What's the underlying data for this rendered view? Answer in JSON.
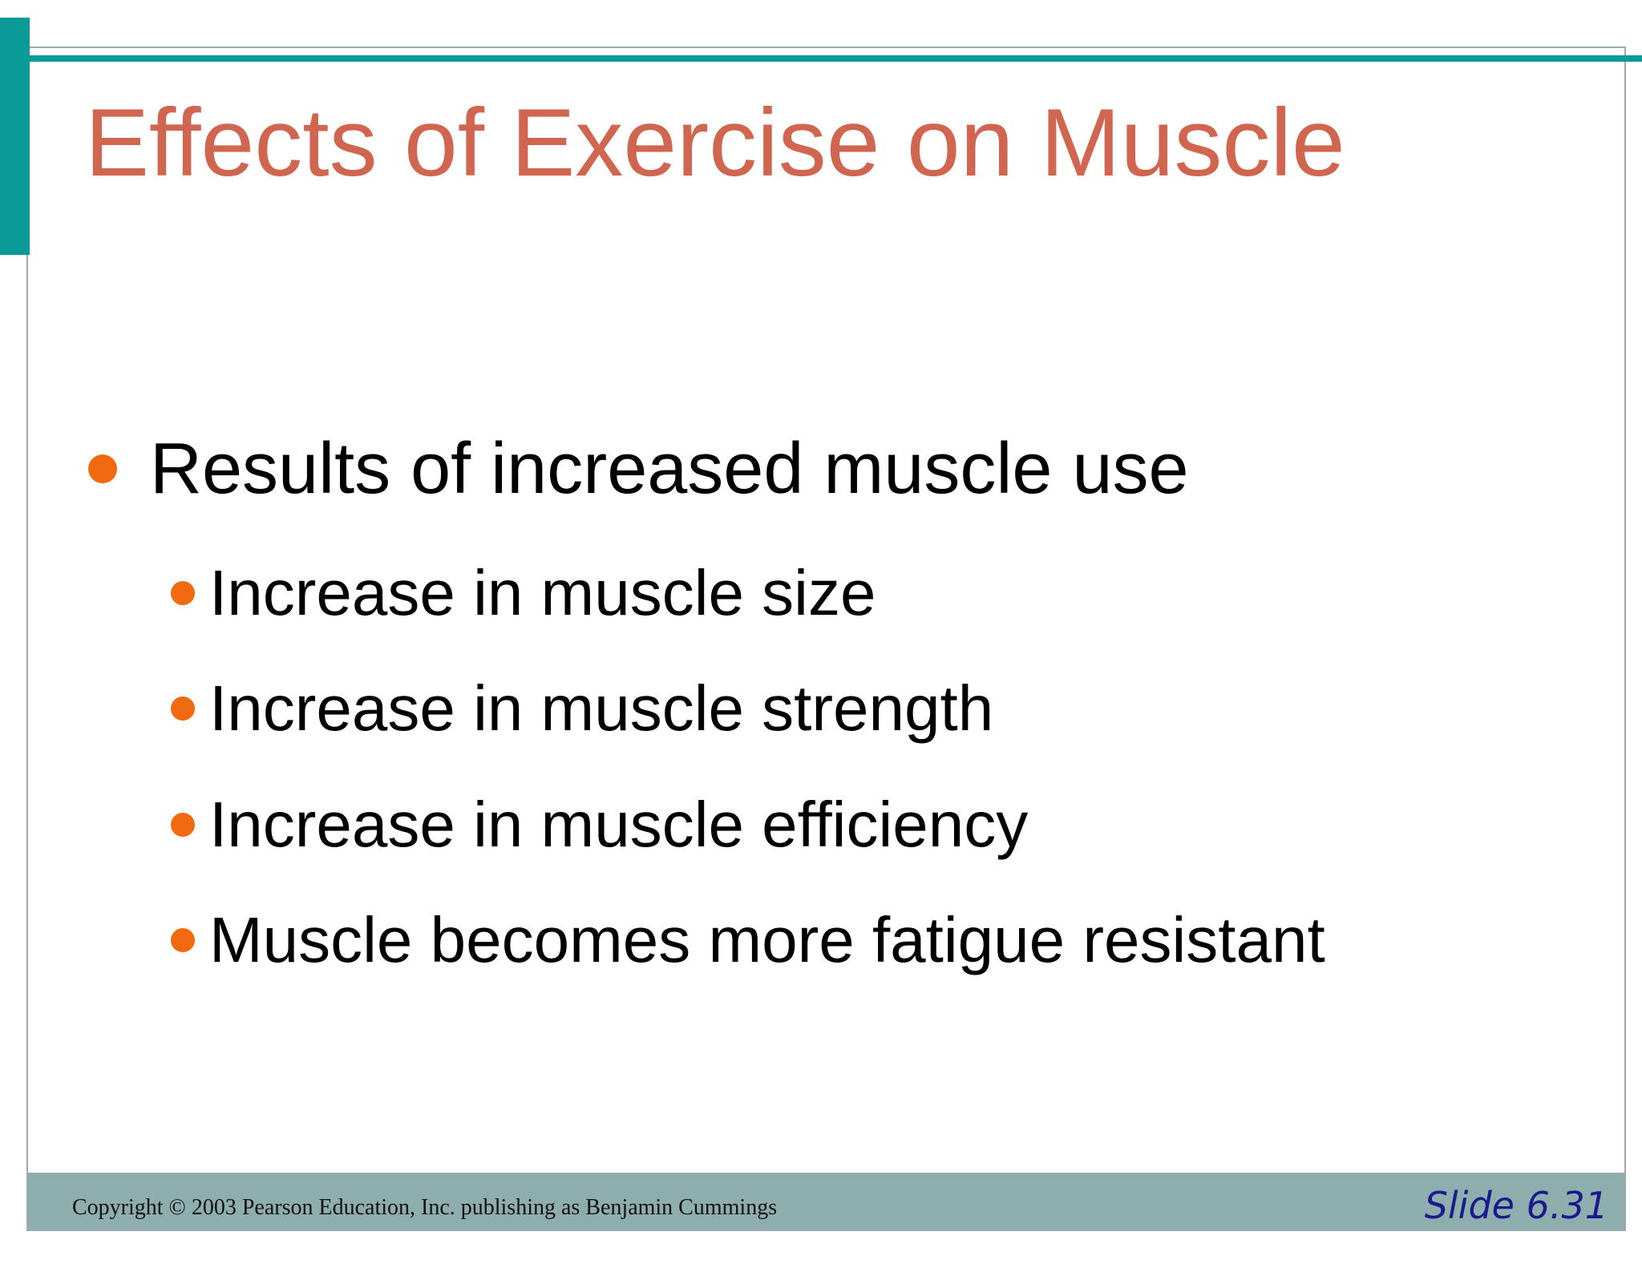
{
  "slide": {
    "title": "Effects of Exercise on Muscle",
    "bullets": [
      {
        "level": 1,
        "text": "Results of increased muscle use"
      },
      {
        "level": 2,
        "text": "Increase in muscle size"
      },
      {
        "level": 2,
        "text": "Increase in muscle strength"
      },
      {
        "level": 2,
        "text": "Increase in muscle efficiency"
      },
      {
        "level": 2,
        "text": "Muscle becomes more fatigue resistant"
      }
    ]
  },
  "footer": {
    "copyright": "Copyright © 2003 Pearson Education, Inc. publishing as Benjamin Cummings",
    "slide_number": "Slide 6.31"
  },
  "colors": {
    "accent_teal": "#0a9a98",
    "title_color": "#d16650",
    "bullet_color": "#f26a10",
    "footer_bar": "#8eadad",
    "slide_number_color": "#1a1a8c"
  }
}
